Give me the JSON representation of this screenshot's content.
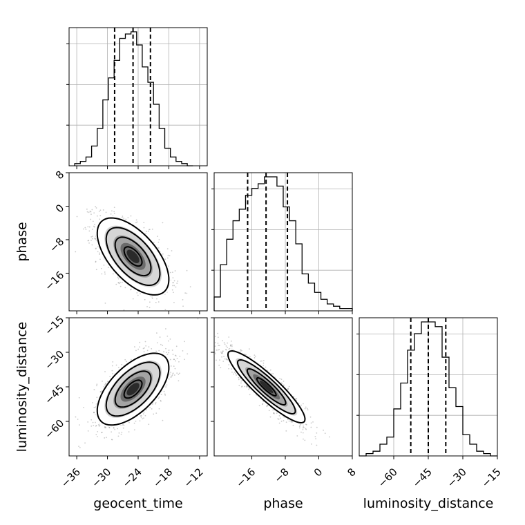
{
  "chart_data": {
    "type": "corner",
    "parameters": [
      "geocent_time",
      "phase",
      "luminosity_distance"
    ],
    "axis_labels": {
      "x": [
        "geocent_time",
        "phase",
        "luminosity_distance"
      ],
      "y": [
        "phase",
        "luminosity_distance"
      ]
    },
    "ranges": {
      "geocent_time": [
        -37.5,
        -10.5
      ],
      "phase": [
        -25,
        8
      ],
      "luminosity_distance": [
        -75,
        -15
      ]
    },
    "ticks": {
      "geocent_time": [
        -36,
        -30,
        -24,
        -18,
        -12
      ],
      "phase": [
        -16,
        -8,
        0,
        8
      ],
      "luminosity_distance": [
        -60,
        -45,
        -30,
        -15
      ]
    },
    "tick_labels": {
      "geocent_time": [
        "−36",
        "−30",
        "−24",
        "−18",
        "−12"
      ],
      "phase": [
        "−16",
        "−8",
        "0",
        "8"
      ],
      "luminosity_distance": [
        "−60",
        "−45",
        "−30",
        "−15"
      ]
    },
    "grid": true,
    "quantiles": {
      "geocent_time": [
        -28.6,
        -25.0,
        -21.6
      ],
      "phase": [
        -17.0,
        -12.6,
        -7.5
      ],
      "luminosity_distance": [
        -52.6,
        -45.0,
        -37.4
      ]
    },
    "histograms": {
      "geocent_time": {
        "bin_edges": [
          -36.4,
          -35.3,
          -34.2,
          -33.1,
          -32.0,
          -30.9,
          -29.8,
          -28.7,
          -27.6,
          -26.5,
          -25.4,
          -24.3,
          -23.2,
          -22.1,
          -21.0,
          -19.9,
          -18.8,
          -17.7,
          -16.6,
          -15.5,
          -14.4,
          -13.3
        ],
        "counts": [
          1,
          2,
          4,
          9,
          17,
          30,
          40,
          48,
          58,
          60,
          61,
          55,
          45,
          38,
          28,
          17,
          8,
          4,
          2,
          1,
          0
        ]
      },
      "phase": {
        "bin_edges": [
          -25,
          -23.5,
          -22,
          -20.5,
          -19,
          -17.5,
          -16,
          -14.5,
          -13,
          -11.5,
          -10,
          -8.5,
          -7,
          -5.5,
          -4,
          -2.5,
          -1,
          0.5,
          2,
          3.5,
          5,
          6.5,
          8
        ],
        "counts": [
          6,
          20,
          31,
          39,
          44,
          50,
          53,
          55,
          58,
          58,
          54,
          45,
          39,
          29,
          16,
          12,
          8,
          5,
          3,
          2,
          1,
          1
        ]
      },
      "luminosity_distance": {
        "bin_edges": [
          -75,
          -72,
          -69,
          -66,
          -63,
          -60,
          -57,
          -54,
          -51,
          -48,
          -45,
          -42,
          -39,
          -36,
          -33,
          -30,
          -27,
          -24,
          -21,
          -18,
          -15
        ],
        "counts": [
          0,
          1,
          2,
          5,
          8,
          20,
          31,
          45,
          52,
          57,
          57,
          55,
          42,
          29,
          21,
          9,
          5,
          2,
          1,
          0
        ]
      }
    },
    "contour_levels_sigma": [
      0.5,
      1.0,
      1.5,
      2.0
    ],
    "correlations": {
      "phase_vs_geocent_time": {
        "mean": [
          -25.0,
          -12.0
        ],
        "std": [
          3.5,
          4.6
        ],
        "rho": -0.6
      },
      "luminosity_distance_vs_geocent_time": {
        "mean": [
          -25.0,
          -46.0
        ],
        "std": [
          3.5,
          7.8
        ],
        "rho": 0.6
      },
      "luminosity_distance_vs_phase": {
        "mean": [
          -12.5,
          -45.0
        ],
        "std": [
          4.6,
          7.8
        ],
        "rho": -0.9
      }
    }
  }
}
